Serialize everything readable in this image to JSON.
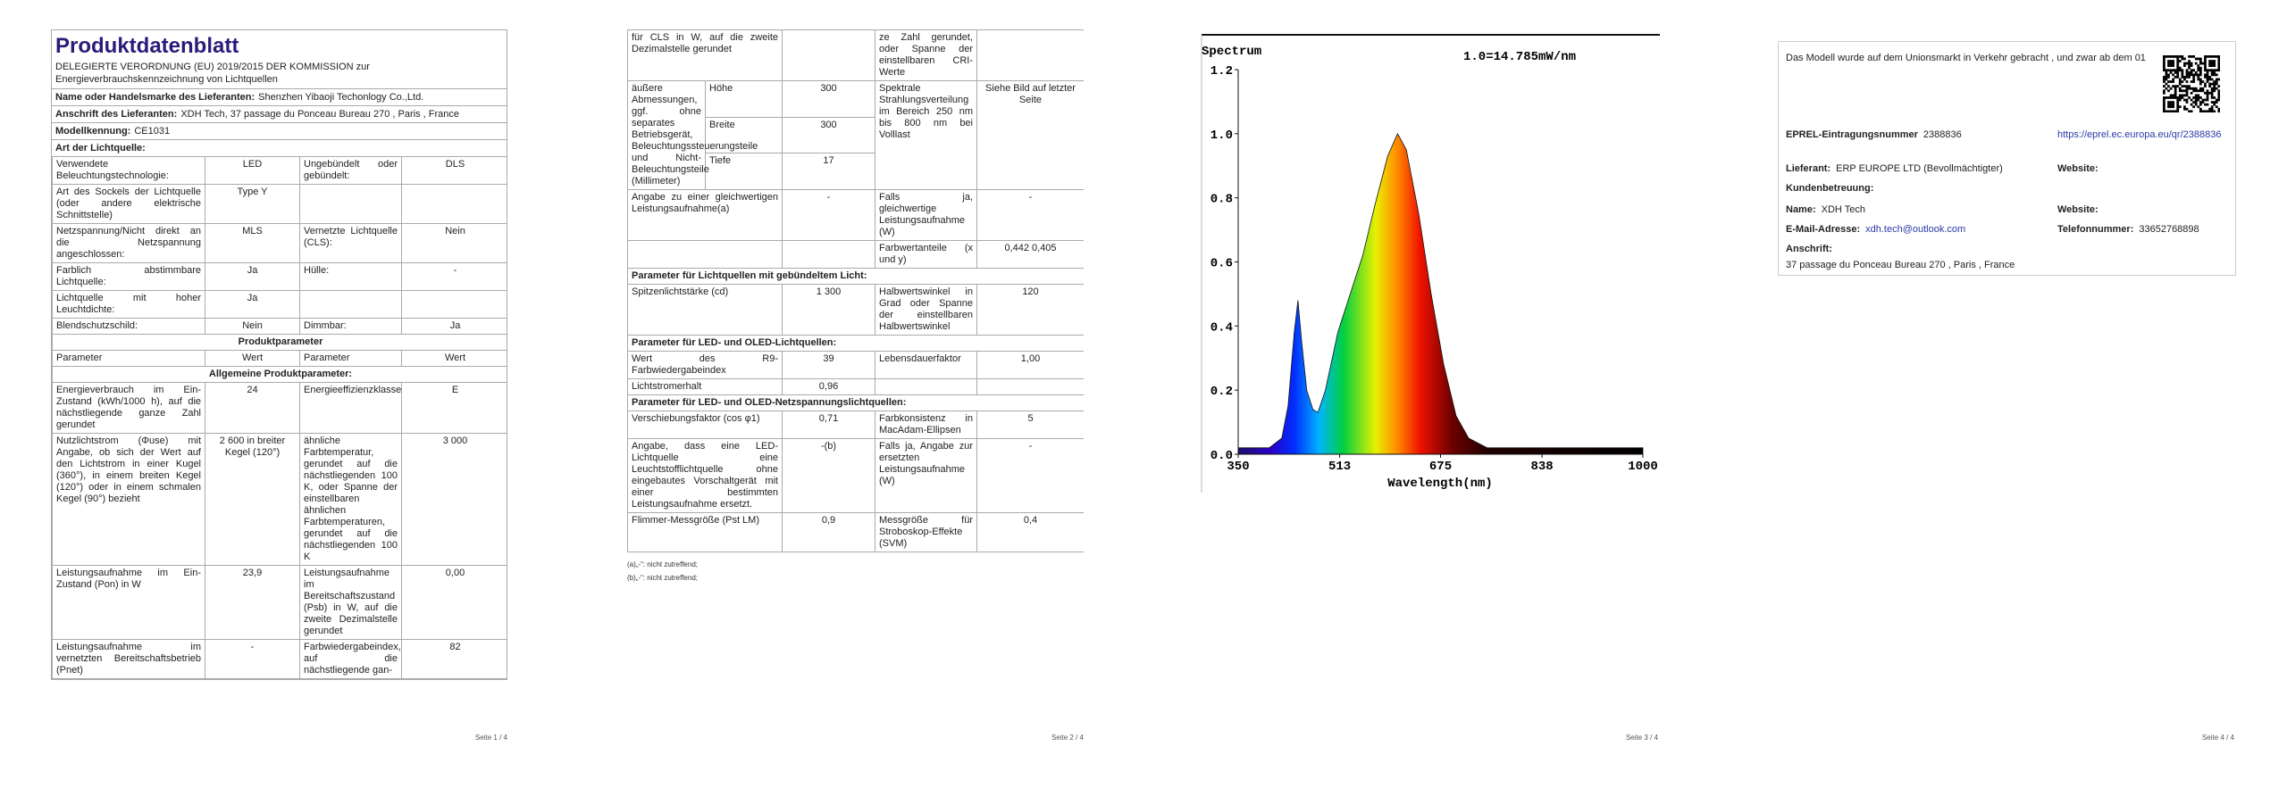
{
  "page1": {
    "title": "Produktdatenblatt",
    "regulation": "DELEGIERTE VERORDNUNG (EU) 2019/2015 DER KOMMISSION zur Energieverbrauchskennzeichnung von Lichtquellen",
    "info": [
      [
        "Name oder Handelsmarke des Lieferanten:",
        "Shenzhen Yibaoji Techonlogy Co.,Ltd."
      ],
      [
        "Anschrift des Lieferanten:",
        "XDH Tech, 37 passage du Ponceau Bureau 270 , Paris , France"
      ],
      [
        "Modellkennung:",
        "CE1031"
      ]
    ],
    "light_source_heading": "Art der Lichtquelle:",
    "table": {
      "rows": [
        [
          "Verwendete Beleuchtungstechnologie:",
          "LED",
          "Ungebündelt oder gebündelt:",
          "DLS"
        ],
        [
          "Art des Sockels der Lichtquelle (oder andere elektrische Schnittstelle)",
          "Type Y",
          null,
          null
        ],
        [
          "Netzspannung/Nicht direkt an die Netzspannung angeschlossen:",
          "MLS",
          "Vernetzte Lichtquelle (CLS):",
          "Nein"
        ],
        [
          "Farblich abstimmbare Lichtquelle:",
          "Ja",
          "Hülle:",
          "-"
        ],
        [
          "Lichtquelle mit hoher Leuchtdichte:",
          "Ja",
          null,
          null
        ],
        [
          "Blendschutzschild:",
          "Nein",
          "Dimmbar:",
          "Ja"
        ],
        [
          "Produktparameter"
        ],
        [
          "Parameter",
          "Wert",
          "Parameter",
          "Wert"
        ],
        [
          "Allgemeine Produktparameter:"
        ],
        [
          "Energieverbrauch im Ein-Zustand (kWh/1000 h), auf die nächstliegende ganze Zahl gerundet",
          "24",
          "Energieeffizienzklasse",
          "E"
        ],
        [
          "Nutzlichtstrom (Φuse) mit Angabe, ob sich der Wert auf den Lichtstrom in einer Kugel (360°), in einem breiten Kegel (120°) oder in einem schmalen Kegel (90°) bezieht",
          "2 600 in breiter Kegel (120°)",
          "ähnliche Farbtemperatur, gerundet auf die nächstliegenden 100 K, oder Spanne der einstellbaren ähnlichen Farbtemperaturen, gerundet auf die nächstliegenden 100 K",
          "3 000"
        ],
        [
          "Leistungsaufnahme im Ein-Zustand (Pon) in W",
          "23,9",
          "Leistungsaufnahme im Bereitschaftszustand (Psb) in W, auf die zweite Dezimalstelle gerundet",
          "0,00"
        ],
        [
          "Leistungsaufnahme im vernetzten Bereitschaftsbetrieb (Pnet)",
          "-",
          "Farbwiedergabeindex, auf die nächstliegende gan-",
          "82"
        ]
      ]
    },
    "page_number": "Seite 1 / 4"
  },
  "page2": {
    "rows_before": [
      [
        "für CLS in W, auf die zweite Dezimalstelle gerundet",
        null,
        "ze Zahl gerundet, oder Spanne der einstellbaren CRI-Werte",
        null
      ]
    ],
    "dimensions": {
      "label": "äußere Abmessungen, ggf. ohne separates Betriebsgerät, Beleuchtungssteuerungsteile und Nicht-Beleuchtungsteile (Millimeter)",
      "items": [
        [
          "Höhe",
          "300"
        ],
        [
          "Breite",
          "300"
        ],
        [
          "Tiefe",
          "17"
        ]
      ],
      "spectrum_label": "Spektrale Strahlungsverteilung im Bereich 250 nm bis 800 nm bei Volllast",
      "spectrum_value": "Siehe Bild auf letzter Seite"
    },
    "rows": [
      [
        "Angabe zu einer gleichwertigen Leistungsaufnahme(a)",
        "-",
        "Falls ja, gleichwertige Leistungsaufnahme (W)",
        "-"
      ],
      [
        null,
        null,
        "Farbwertanteile (x und y)",
        "0,442 0,405"
      ],
      [
        "Parameter für Lichtquellen mit gebündeltem Licht:"
      ],
      [
        "Spitzenlichtstärke (cd)",
        "1 300",
        "Halbwertswinkel in Grad oder Spanne der einstellbaren Halbwertswinkel",
        "120"
      ],
      [
        "Parameter für LED- und OLED-Lichtquellen:"
      ],
      [
        "Wert des R9-Farbwiedergabeindex",
        "39",
        "Lebensdauerfaktor",
        "1,00"
      ],
      [
        "Lichtstromerhalt",
        "0,96",
        null,
        null
      ],
      [
        "Parameter für LED- und OLED-Netzspannungslichtquellen:"
      ],
      [
        "Verschiebungsfaktor (cos φ1)",
        "0,71",
        "Farbkonsistenz in MacAdam-Ellipsen",
        "5"
      ],
      [
        "Angabe, dass eine LED-Lichtquelle eine Leuchtstofflichtquelle ohne eingebautes Vorschaltgerät mit einer bestimmten Leistungsaufnahme ersetzt.",
        "-(b)",
        "Falls ja, Angabe zur ersetzten Leistungsaufnahme (W)",
        "-"
      ],
      [
        "Flimmer-Messgröße (Pst LM)",
        "0,9",
        "Messgröße für Stroboskop-Effekte (SVM)",
        "0,4"
      ]
    ],
    "notes": [
      "(a)„-“: nicht zutreffend;",
      "(b)„-“: nicht zutreffend;"
    ],
    "page_number": "Seite 2 / 4"
  },
  "page3": {
    "chart": {
      "type": "area",
      "title": "Spectrum",
      "annotation": "1.0=14.785mW/nm",
      "x_label": "Wavelength(nm)",
      "x": [
        350,
        400,
        420,
        430,
        440,
        446,
        452,
        460,
        470,
        478,
        490,
        510,
        530,
        550,
        570,
        590,
        606,
        620,
        640,
        660,
        680,
        700,
        720,
        750,
        800,
        900,
        1000
      ],
      "values": [
        0.02,
        0.02,
        0.05,
        0.15,
        0.38,
        0.48,
        0.35,
        0.2,
        0.14,
        0.13,
        0.2,
        0.38,
        0.5,
        0.62,
        0.78,
        0.93,
        1.0,
        0.95,
        0.75,
        0.5,
        0.28,
        0.12,
        0.05,
        0.02,
        0.02,
        0.02,
        0.02
      ],
      "xlim": [
        350,
        1000
      ],
      "xticks": [
        350,
        513,
        675,
        838,
        1000
      ],
      "ylim": [
        0,
        1.2
      ],
      "yticks": [
        {
          "value": 0,
          "label": "0.0"
        },
        0.2,
        0.4,
        0.6,
        0.8,
        {
          "value": 1,
          "label": "1.0"
        },
        1.2
      ]
    },
    "page_number": "Seite 3 / 4"
  },
  "page4": {
    "intro": "Das Modell wurde auf dem Unionsmarkt in Verkehr gebracht , und zwar ab dem 01",
    "eprel_label": "EPREL-Eintragungsnummer",
    "eprel_value": "2388836",
    "eprel_link": "https://eprel.ec.europa.eu/qr/2388836",
    "supplier_label": "Lieferant:",
    "supplier_value": "ERP EUROPE LTD (Bevollmächtigter)",
    "website_label_1": "Website:",
    "support_heading": "Kundenbetreuung:",
    "name_label": "Name:",
    "name_value": "XDH Tech",
    "website_label_2": "Website:",
    "email_label": "E-Mail-Adresse:",
    "email_value": "xdh.tech@outlook.com",
    "phone_label": "Telefonnummer:",
    "phone_value": "33652768898",
    "address_label": "Anschrift:",
    "address_value": "37 passage du Ponceau Bureau 270 , Paris , France",
    "page_number": "Seite 4 / 4"
  }
}
